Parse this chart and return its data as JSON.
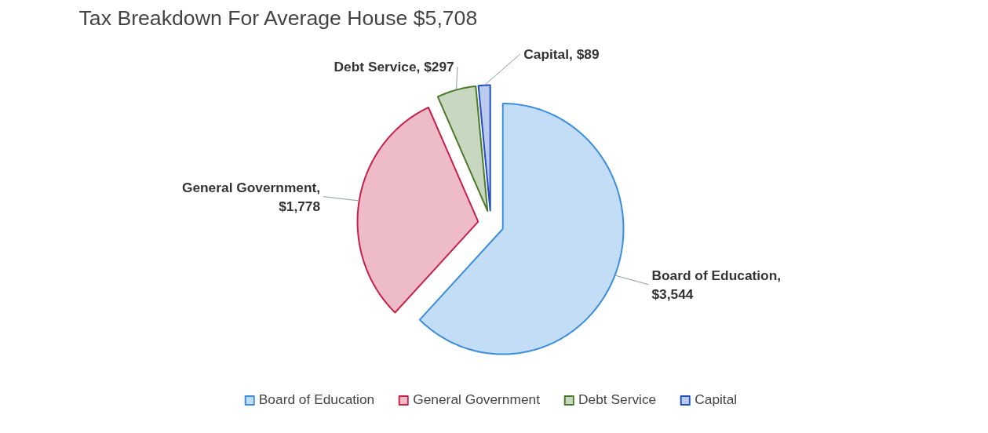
{
  "chart_data": {
    "type": "pie",
    "title": "Tax Breakdown For Average House  $5,708",
    "categories": [
      "Board of Education",
      "General Government",
      "Debt Service",
      "Capital"
    ],
    "values": [
      3544,
      1778,
      297,
      89
    ],
    "value_labels": [
      "Board of Education,\n$3,544",
      "General Government,\n$1,778",
      "Debt Service, $297",
      "Capital, $89"
    ],
    "colors": [
      "#3a8ee0",
      "#c8204a",
      "#4a7a2a",
      "#2050c0"
    ],
    "legend": "bottom"
  }
}
